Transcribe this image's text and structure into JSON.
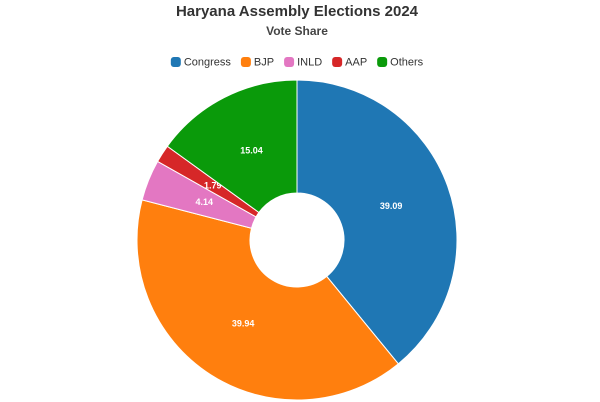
{
  "chart_data": {
    "type": "pie",
    "title": "Haryana Assembly Elections 2024",
    "subtitle": "Vote Share",
    "categories": [
      "Congress",
      "BJP",
      "INLD",
      "AAP",
      "Others"
    ],
    "values": [
      39.09,
      39.94,
      4.14,
      1.79,
      15.04
    ],
    "colors": [
      "#1f77b4",
      "#ff7f0e",
      "#e377c2",
      "#d62728",
      "#0a9a0a"
    ],
    "legend": "top"
  }
}
